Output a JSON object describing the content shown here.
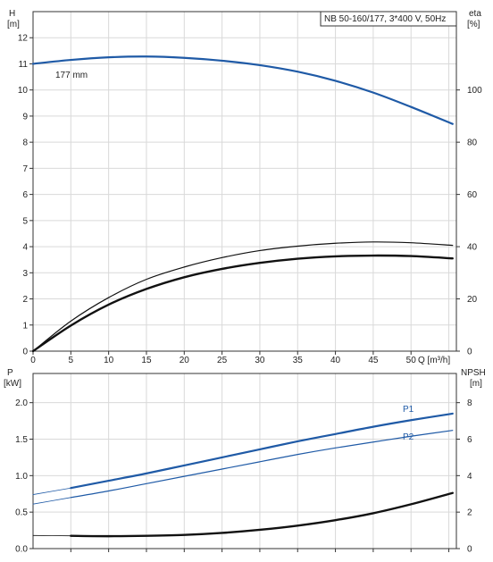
{
  "chart_data": [
    {
      "type": "line",
      "title": "NB 50-160/177, 3*400 V, 50Hz",
      "xlabel": "Q [m³/h]",
      "ylabel_left": [
        "H",
        "[m]"
      ],
      "ylabel_right": [
        "eta",
        "[%]"
      ],
      "xlim": [
        0,
        56
      ],
      "ylim_left": [
        0,
        13
      ],
      "ylim_right": [
        0,
        130
      ],
      "x_ticks": [
        "0",
        "5",
        "10",
        "15",
        "20",
        "25",
        "30",
        "35",
        "40",
        "45",
        "50"
      ],
      "y_left_ticks": [
        "0",
        "1",
        "2",
        "3",
        "4",
        "5",
        "6",
        "7",
        "8",
        "9",
        "10",
        "11",
        "12"
      ],
      "y_right_ticks": [
        "0",
        "20",
        "40",
        "60",
        "80",
        "100"
      ],
      "grid": true,
      "annotation": "177 mm",
      "series": [
        {
          "axis": "left",
          "color": "#1f5aa6",
          "width": 2.2,
          "points": [
            [
              0,
              11.0
            ],
            [
              5,
              11.15
            ],
            [
              10,
              11.25
            ],
            [
              15,
              11.28
            ],
            [
              20,
              11.23
            ],
            [
              25,
              11.12
            ],
            [
              30,
              10.95
            ],
            [
              35,
              10.7
            ],
            [
              40,
              10.35
            ],
            [
              45,
              9.9
            ],
            [
              50,
              9.35
            ],
            [
              55.5,
              8.7
            ]
          ]
        },
        {
          "axis": "right",
          "color": "#111111",
          "width": 1.2,
          "points": [
            [
              0,
              0
            ],
            [
              5,
              11.5
            ],
            [
              10,
              20.5
            ],
            [
              15,
              27.5
            ],
            [
              20,
              32.2
            ],
            [
              25,
              35.8
            ],
            [
              30,
              38.5
            ],
            [
              35,
              40.2
            ],
            [
              40,
              41.3
            ],
            [
              45,
              41.8
            ],
            [
              50,
              41.5
            ],
            [
              55.5,
              40.5
            ]
          ]
        },
        {
          "axis": "right",
          "color": "#111111",
          "width": 2.4,
          "points": [
            [
              0,
              0
            ],
            [
              5,
              9.8
            ],
            [
              10,
              17.8
            ],
            [
              15,
              23.8
            ],
            [
              20,
              28.3
            ],
            [
              25,
              31.5
            ],
            [
              30,
              33.8
            ],
            [
              35,
              35.4
            ],
            [
              40,
              36.3
            ],
            [
              45,
              36.6
            ],
            [
              50,
              36.4
            ],
            [
              55.5,
              35.5
            ]
          ]
        }
      ]
    },
    {
      "type": "line",
      "xlabel": "",
      "ylabel_left": [
        "P",
        "[kW]"
      ],
      "ylabel_right": [
        "NPSH",
        "[m]"
      ],
      "xlim": [
        0,
        56
      ],
      "ylim_left": [
        0,
        2.4
      ],
      "ylim_right": [
        0,
        9.6
      ],
      "y_left_ticks": [
        "0.0",
        "0.5",
        "1.0",
        "1.5",
        "2.0"
      ],
      "y_right_ticks": [
        "0",
        "2",
        "4",
        "6",
        "8"
      ],
      "grid": true,
      "series": [
        {
          "name": "P1",
          "axis": "left",
          "color": "#1f5aa6",
          "width": 2.2,
          "points": [
            [
              5,
              0.83
            ],
            [
              10,
              0.93
            ],
            [
              15,
              1.03
            ],
            [
              20,
              1.14
            ],
            [
              25,
              1.25
            ],
            [
              30,
              1.36
            ],
            [
              35,
              1.47
            ],
            [
              40,
              1.57
            ],
            [
              45,
              1.67
            ],
            [
              50,
              1.76
            ],
            [
              55.5,
              1.85
            ]
          ]
        },
        {
          "name": "P2",
          "axis": "left",
          "color": "#1f5aa6",
          "width": 1.2,
          "points": [
            [
              5,
              0.7
            ],
            [
              10,
              0.79
            ],
            [
              15,
              0.89
            ],
            [
              20,
              0.99
            ],
            [
              25,
              1.09
            ],
            [
              30,
              1.19
            ],
            [
              35,
              1.29
            ],
            [
              40,
              1.38
            ],
            [
              45,
              1.46
            ],
            [
              50,
              1.54
            ],
            [
              55.5,
              1.62
            ]
          ]
        },
        {
          "axis": "left",
          "color": "#1f5aa6",
          "width": 0.8,
          "style": "extension",
          "points": [
            [
              0,
              0.74
            ],
            [
              5,
              0.83
            ]
          ]
        },
        {
          "axis": "left",
          "color": "#1f5aa6",
          "width": 0.8,
          "style": "extension",
          "points": [
            [
              0,
              0.61
            ],
            [
              5,
              0.7
            ]
          ]
        },
        {
          "axis": "right",
          "color": "#111111",
          "width": 2.4,
          "points": [
            [
              5,
              0.7
            ],
            [
              10,
              0.68
            ],
            [
              15,
              0.7
            ],
            [
              20,
              0.75
            ],
            [
              25,
              0.86
            ],
            [
              30,
              1.03
            ],
            [
              35,
              1.26
            ],
            [
              40,
              1.56
            ],
            [
              45,
              1.94
            ],
            [
              50,
              2.43
            ],
            [
              55.5,
              3.05
            ]
          ]
        },
        {
          "axis": "right",
          "color": "#111111",
          "width": 0.8,
          "style": "extension",
          "points": [
            [
              0,
              0.72
            ],
            [
              5,
              0.7
            ]
          ]
        }
      ]
    }
  ]
}
